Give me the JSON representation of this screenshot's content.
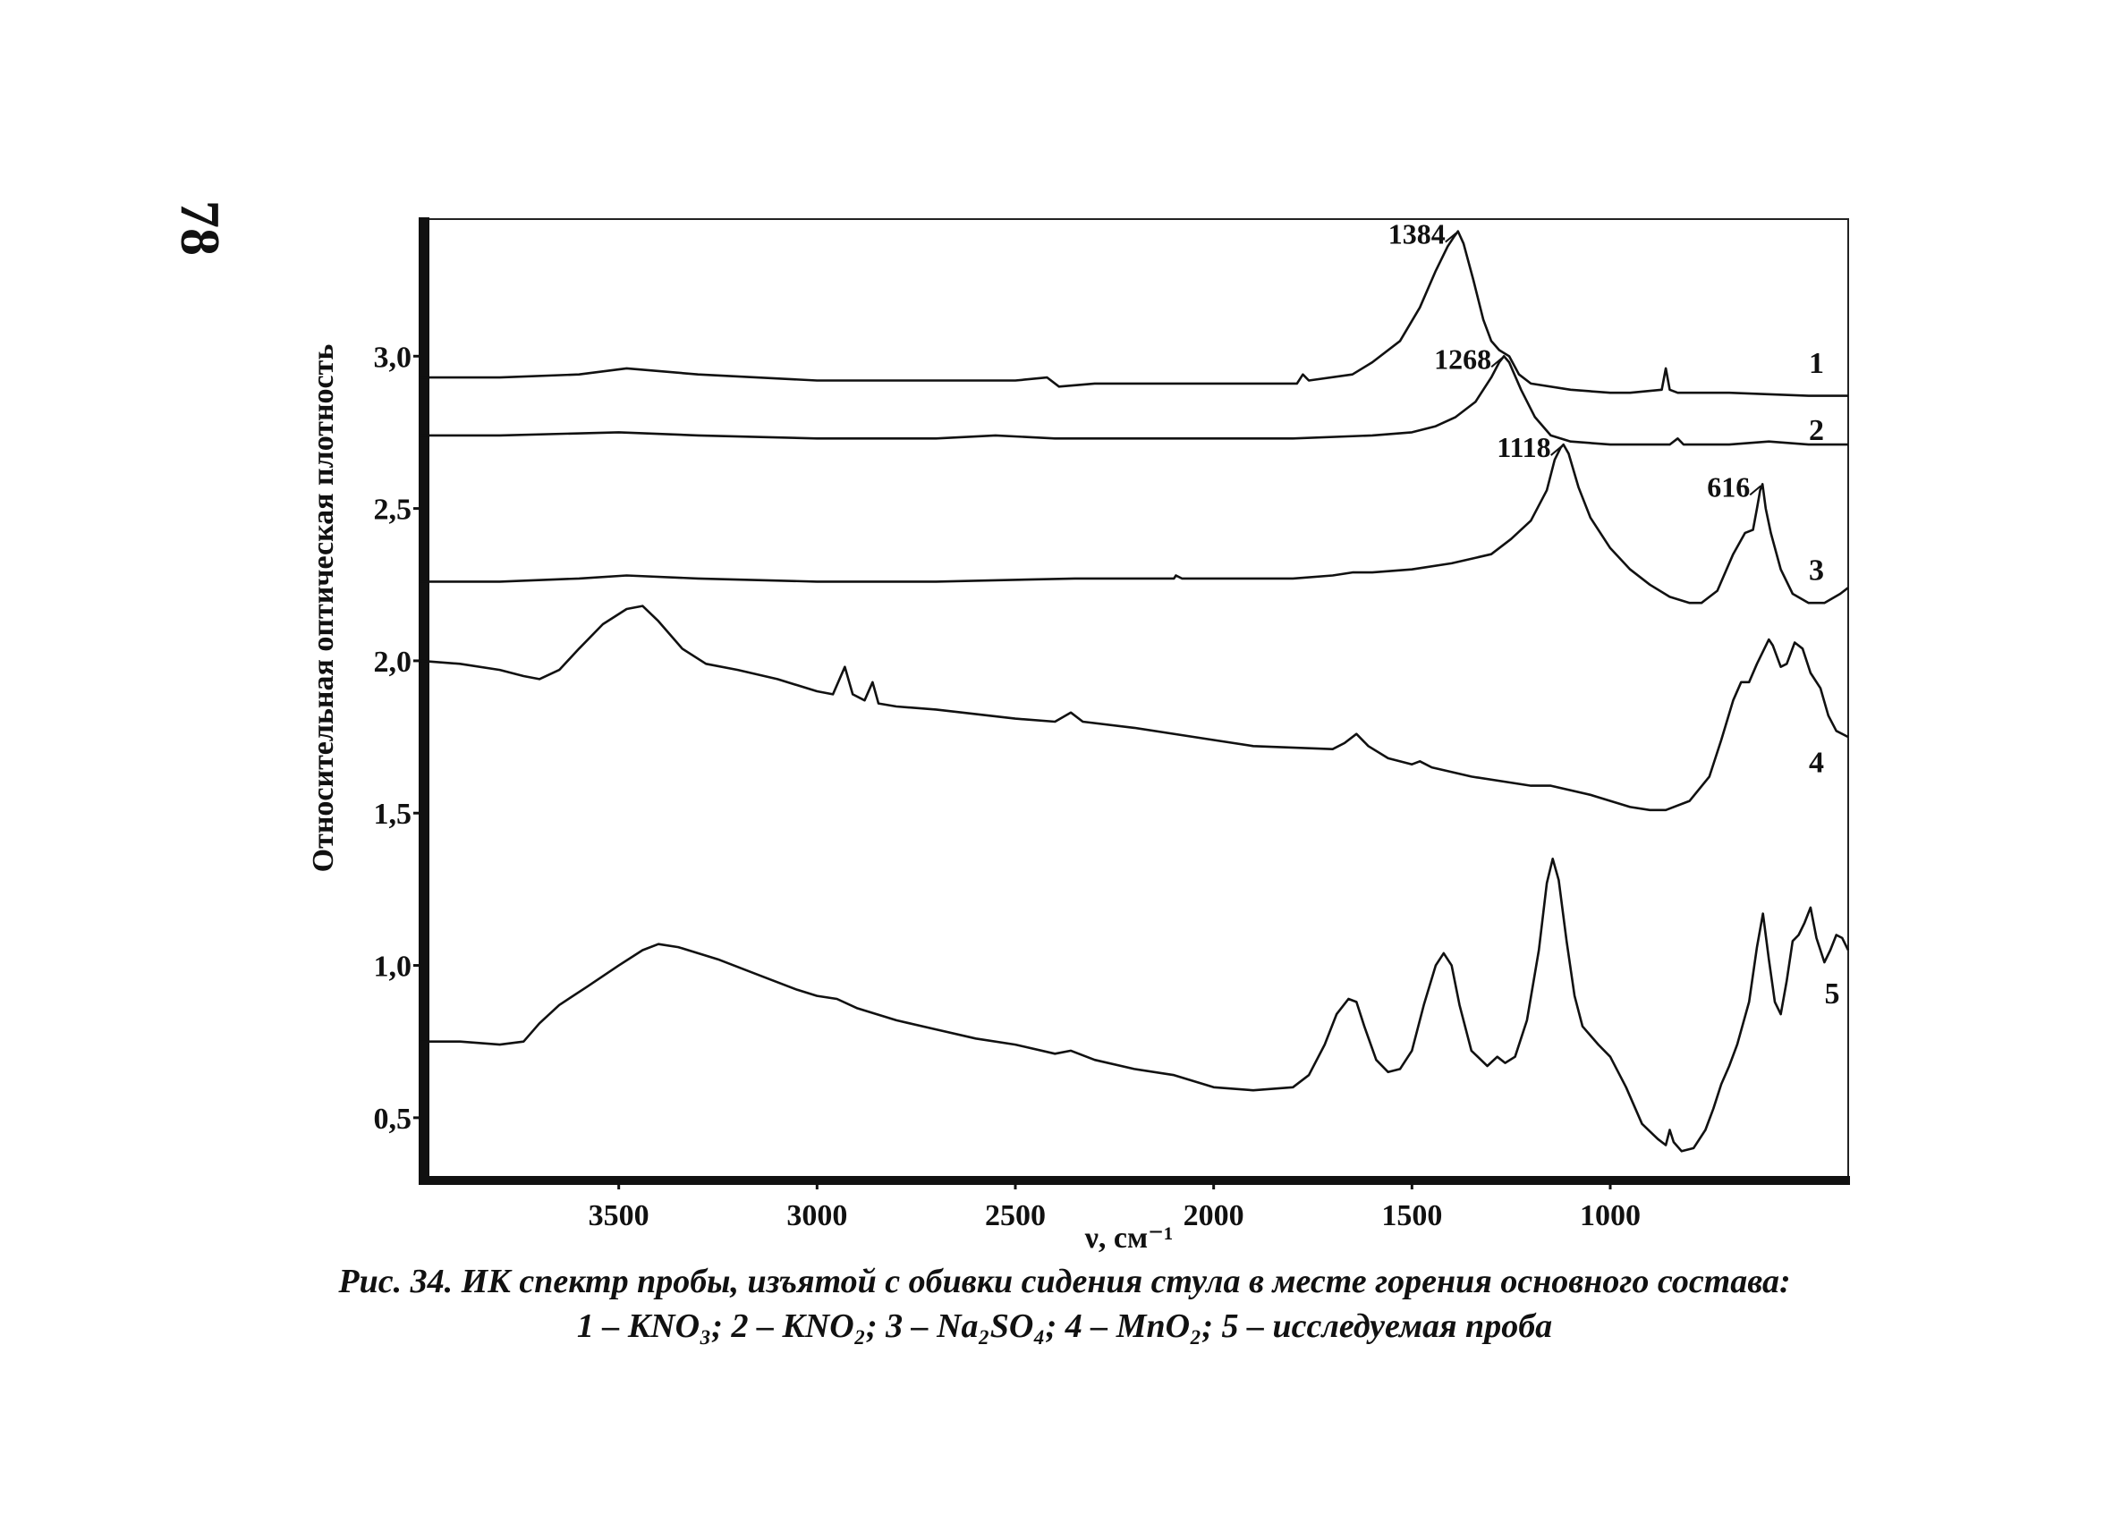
{
  "page": {
    "number": "78"
  },
  "caption": {
    "line1": "Рис. 34. ИК спектр пробы, изъятой с обивки сидения стула в месте горения основного состава:",
    "line2": "1 – KNO₃; 2 – KNO₂; 3 – Na₂SO₄; 4 – MnO₂; 5 – исследуемая проба"
  },
  "chart_data": {
    "type": "line",
    "title": "",
    "xlabel": "ν, см⁻¹",
    "ylabel": "Относительная оптическая плотность",
    "xlim": [
      4000,
      400
    ],
    "ylim": [
      0.3,
      3.45
    ],
    "x_reversed": true,
    "xticks": [
      {
        "value": 3500,
        "label": "3500"
      },
      {
        "value": 3000,
        "label": "3000"
      },
      {
        "value": 2500,
        "label": "2500"
      },
      {
        "value": 2000,
        "label": "2000"
      },
      {
        "value": 1500,
        "label": "1500"
      },
      {
        "value": 1000,
        "label": "1000"
      }
    ],
    "yticks": [
      {
        "value": 3.0,
        "label": "3,0"
      },
      {
        "value": 2.5,
        "label": "2,5"
      },
      {
        "value": 2.0,
        "label": "2,0"
      },
      {
        "value": 1.5,
        "label": "1,5"
      },
      {
        "value": 1.0,
        "label": "1,0"
      },
      {
        "value": 0.5,
        "label": "0,5"
      }
    ],
    "grid": false,
    "series": [
      {
        "name": "1",
        "label_at": [
          480,
          2.98
        ],
        "points": [
          [
            4000,
            2.93
          ],
          [
            3800,
            2.93
          ],
          [
            3600,
            2.94
          ],
          [
            3480,
            2.96
          ],
          [
            3300,
            2.94
          ],
          [
            3000,
            2.92
          ],
          [
            2700,
            2.92
          ],
          [
            2500,
            2.92
          ],
          [
            2420,
            2.93
          ],
          [
            2390,
            2.9
          ],
          [
            2300,
            2.91
          ],
          [
            2000,
            2.91
          ],
          [
            1790,
            2.91
          ],
          [
            1775,
            2.94
          ],
          [
            1760,
            2.92
          ],
          [
            1650,
            2.94
          ],
          [
            1600,
            2.98
          ],
          [
            1530,
            3.05
          ],
          [
            1480,
            3.16
          ],
          [
            1440,
            3.28
          ],
          [
            1410,
            3.36
          ],
          [
            1395,
            3.39
          ],
          [
            1384,
            3.41
          ],
          [
            1370,
            3.37
          ],
          [
            1345,
            3.25
          ],
          [
            1320,
            3.12
          ],
          [
            1300,
            3.05
          ],
          [
            1280,
            3.02
          ],
          [
            1255,
            3.0
          ],
          [
            1230,
            2.94
          ],
          [
            1200,
            2.91
          ],
          [
            1100,
            2.89
          ],
          [
            1000,
            2.88
          ],
          [
            950,
            2.88
          ],
          [
            870,
            2.89
          ],
          [
            860,
            2.96
          ],
          [
            850,
            2.89
          ],
          [
            830,
            2.88
          ],
          [
            700,
            2.88
          ],
          [
            500,
            2.87
          ],
          [
            400,
            2.87
          ]
        ]
      },
      {
        "name": "2",
        "label_at": [
          480,
          2.76
        ],
        "points": [
          [
            4000,
            2.74
          ],
          [
            3800,
            2.74
          ],
          [
            3500,
            2.75
          ],
          [
            3300,
            2.74
          ],
          [
            3000,
            2.73
          ],
          [
            2700,
            2.73
          ],
          [
            2550,
            2.74
          ],
          [
            2400,
            2.73
          ],
          [
            2000,
            2.73
          ],
          [
            1800,
            2.73
          ],
          [
            1600,
            2.74
          ],
          [
            1500,
            2.75
          ],
          [
            1440,
            2.77
          ],
          [
            1390,
            2.8
          ],
          [
            1340,
            2.85
          ],
          [
            1300,
            2.93
          ],
          [
            1280,
            2.98
          ],
          [
            1268,
            3.0
          ],
          [
            1255,
            2.98
          ],
          [
            1225,
            2.89
          ],
          [
            1190,
            2.8
          ],
          [
            1150,
            2.74
          ],
          [
            1100,
            2.72
          ],
          [
            1000,
            2.71
          ],
          [
            850,
            2.71
          ],
          [
            830,
            2.73
          ],
          [
            815,
            2.71
          ],
          [
            700,
            2.71
          ],
          [
            600,
            2.72
          ],
          [
            500,
            2.71
          ],
          [
            400,
            2.71
          ]
        ]
      },
      {
        "name": "3",
        "label_at": [
          480,
          2.3
        ],
        "points": [
          [
            4000,
            2.26
          ],
          [
            3800,
            2.26
          ],
          [
            3600,
            2.27
          ],
          [
            3480,
            2.28
          ],
          [
            3300,
            2.27
          ],
          [
            3000,
            2.26
          ],
          [
            2700,
            2.26
          ],
          [
            2350,
            2.27
          ],
          [
            2100,
            2.27
          ],
          [
            2095,
            2.28
          ],
          [
            2080,
            2.27
          ],
          [
            1900,
            2.27
          ],
          [
            1800,
            2.27
          ],
          [
            1700,
            2.28
          ],
          [
            1650,
            2.29
          ],
          [
            1600,
            2.29
          ],
          [
            1500,
            2.3
          ],
          [
            1400,
            2.32
          ],
          [
            1300,
            2.35
          ],
          [
            1250,
            2.4
          ],
          [
            1200,
            2.46
          ],
          [
            1160,
            2.56
          ],
          [
            1140,
            2.66
          ],
          [
            1125,
            2.7
          ],
          [
            1118,
            2.71
          ],
          [
            1105,
            2.68
          ],
          [
            1080,
            2.57
          ],
          [
            1050,
            2.47
          ],
          [
            1000,
            2.37
          ],
          [
            950,
            2.3
          ],
          [
            900,
            2.25
          ],
          [
            850,
            2.21
          ],
          [
            800,
            2.19
          ],
          [
            770,
            2.19
          ],
          [
            730,
            2.23
          ],
          [
            690,
            2.35
          ],
          [
            660,
            2.42
          ],
          [
            640,
            2.43
          ],
          [
            630,
            2.5
          ],
          [
            622,
            2.56
          ],
          [
            616,
            2.58
          ],
          [
            608,
            2.5
          ],
          [
            595,
            2.42
          ],
          [
            570,
            2.3
          ],
          [
            540,
            2.22
          ],
          [
            500,
            2.19
          ],
          [
            460,
            2.19
          ],
          [
            420,
            2.22
          ],
          [
            400,
            2.24
          ]
        ]
      },
      {
        "name": "4",
        "label_at": [
          480,
          1.67
        ],
        "points": [
          [
            4000,
            2.0
          ],
          [
            3900,
            1.99
          ],
          [
            3800,
            1.97
          ],
          [
            3740,
            1.95
          ],
          [
            3700,
            1.94
          ],
          [
            3650,
            1.97
          ],
          [
            3600,
            2.04
          ],
          [
            3540,
            2.12
          ],
          [
            3480,
            2.17
          ],
          [
            3440,
            2.18
          ],
          [
            3400,
            2.13
          ],
          [
            3340,
            2.04
          ],
          [
            3280,
            1.99
          ],
          [
            3200,
            1.97
          ],
          [
            3100,
            1.94
          ],
          [
            3000,
            1.9
          ],
          [
            2960,
            1.89
          ],
          [
            2930,
            1.98
          ],
          [
            2910,
            1.89
          ],
          [
            2880,
            1.87
          ],
          [
            2860,
            1.93
          ],
          [
            2845,
            1.86
          ],
          [
            2800,
            1.85
          ],
          [
            2700,
            1.84
          ],
          [
            2500,
            1.81
          ],
          [
            2400,
            1.8
          ],
          [
            2360,
            1.83
          ],
          [
            2330,
            1.8
          ],
          [
            2200,
            1.78
          ],
          [
            2000,
            1.74
          ],
          [
            1900,
            1.72
          ],
          [
            1700,
            1.71
          ],
          [
            1670,
            1.73
          ],
          [
            1640,
            1.76
          ],
          [
            1610,
            1.72
          ],
          [
            1560,
            1.68
          ],
          [
            1500,
            1.66
          ],
          [
            1480,
            1.67
          ],
          [
            1450,
            1.65
          ],
          [
            1350,
            1.62
          ],
          [
            1200,
            1.59
          ],
          [
            1150,
            1.59
          ],
          [
            1050,
            1.56
          ],
          [
            950,
            1.52
          ],
          [
            900,
            1.51
          ],
          [
            860,
            1.51
          ],
          [
            800,
            1.54
          ],
          [
            750,
            1.62
          ],
          [
            720,
            1.74
          ],
          [
            690,
            1.87
          ],
          [
            670,
            1.93
          ],
          [
            650,
            1.93
          ],
          [
            630,
            1.99
          ],
          [
            600,
            2.07
          ],
          [
            590,
            2.05
          ],
          [
            570,
            1.98
          ],
          [
            555,
            1.99
          ],
          [
            535,
            2.06
          ],
          [
            515,
            2.04
          ],
          [
            495,
            1.96
          ],
          [
            470,
            1.91
          ],
          [
            450,
            1.82
          ],
          [
            430,
            1.77
          ],
          [
            400,
            1.75
          ]
        ]
      },
      {
        "name": "5",
        "label_at": [
          400,
          0.91
        ],
        "points": [
          [
            4000,
            0.75
          ],
          [
            3900,
            0.75
          ],
          [
            3800,
            0.74
          ],
          [
            3740,
            0.75
          ],
          [
            3700,
            0.81
          ],
          [
            3650,
            0.87
          ],
          [
            3580,
            0.93
          ],
          [
            3500,
            1.0
          ],
          [
            3440,
            1.05
          ],
          [
            3400,
            1.07
          ],
          [
            3350,
            1.06
          ],
          [
            3250,
            1.02
          ],
          [
            3150,
            0.97
          ],
          [
            3050,
            0.92
          ],
          [
            3000,
            0.9
          ],
          [
            2950,
            0.89
          ],
          [
            2900,
            0.86
          ],
          [
            2800,
            0.82
          ],
          [
            2700,
            0.79
          ],
          [
            2600,
            0.76
          ],
          [
            2500,
            0.74
          ],
          [
            2400,
            0.71
          ],
          [
            2360,
            0.72
          ],
          [
            2300,
            0.69
          ],
          [
            2200,
            0.66
          ],
          [
            2100,
            0.64
          ],
          [
            2000,
            0.6
          ],
          [
            1900,
            0.59
          ],
          [
            1800,
            0.6
          ],
          [
            1760,
            0.64
          ],
          [
            1720,
            0.74
          ],
          [
            1690,
            0.84
          ],
          [
            1660,
            0.89
          ],
          [
            1640,
            0.88
          ],
          [
            1620,
            0.8
          ],
          [
            1590,
            0.69
          ],
          [
            1560,
            0.65
          ],
          [
            1530,
            0.66
          ],
          [
            1500,
            0.72
          ],
          [
            1470,
            0.87
          ],
          [
            1440,
            1.0
          ],
          [
            1420,
            1.04
          ],
          [
            1400,
            1.0
          ],
          [
            1380,
            0.87
          ],
          [
            1350,
            0.72
          ],
          [
            1310,
            0.67
          ],
          [
            1285,
            0.7
          ],
          [
            1265,
            0.68
          ],
          [
            1240,
            0.7
          ],
          [
            1210,
            0.82
          ],
          [
            1180,
            1.05
          ],
          [
            1160,
            1.27
          ],
          [
            1145,
            1.35
          ],
          [
            1130,
            1.28
          ],
          [
            1110,
            1.08
          ],
          [
            1090,
            0.9
          ],
          [
            1070,
            0.8
          ],
          [
            1050,
            0.77
          ],
          [
            1030,
            0.74
          ],
          [
            1000,
            0.7
          ],
          [
            960,
            0.6
          ],
          [
            920,
            0.48
          ],
          [
            880,
            0.43
          ],
          [
            860,
            0.41
          ],
          [
            850,
            0.46
          ],
          [
            840,
            0.42
          ],
          [
            820,
            0.39
          ],
          [
            790,
            0.4
          ],
          [
            760,
            0.46
          ],
          [
            740,
            0.53
          ],
          [
            720,
            0.61
          ],
          [
            700,
            0.67
          ],
          [
            680,
            0.74
          ],
          [
            650,
            0.88
          ],
          [
            630,
            1.06
          ],
          [
            615,
            1.17
          ],
          [
            600,
            1.02
          ],
          [
            585,
            0.88
          ],
          [
            570,
            0.84
          ],
          [
            555,
            0.95
          ],
          [
            540,
            1.08
          ],
          [
            525,
            1.1
          ],
          [
            510,
            1.14
          ],
          [
            495,
            1.19
          ],
          [
            480,
            1.09
          ],
          [
            460,
            1.01
          ],
          [
            445,
            1.05
          ],
          [
            430,
            1.1
          ],
          [
            415,
            1.09
          ],
          [
            400,
            1.05
          ]
        ]
      }
    ],
    "annotations": [
      {
        "text": "1384",
        "x": 1384,
        "y": 3.41
      },
      {
        "text": "1268",
        "x": 1268,
        "y": 3.0
      },
      {
        "text": "1118",
        "x": 1118,
        "y": 2.71
      },
      {
        "text": "616",
        "x": 616,
        "y": 2.58
      }
    ]
  }
}
